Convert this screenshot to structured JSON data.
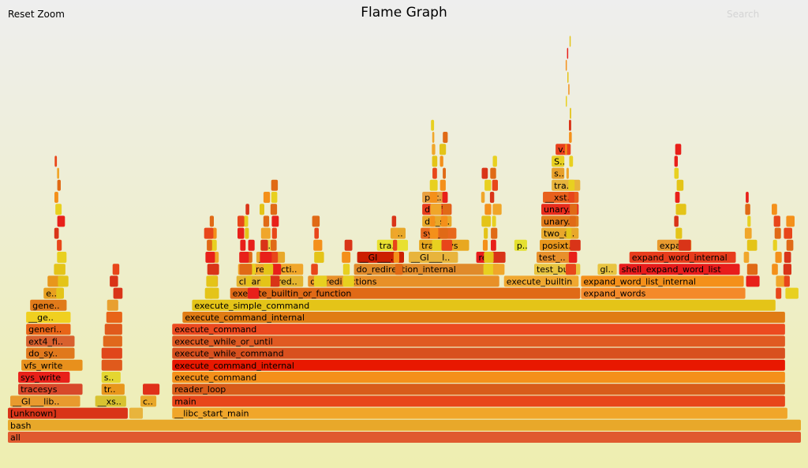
{
  "header": {
    "reset_zoom_label": "Reset Zoom",
    "title": "Flame Graph",
    "search_label": "Search"
  },
  "chart_data": {
    "type": "flame-graph",
    "title": "Flame Graph",
    "frames": [
      {
        "label": "all",
        "start": 0.0,
        "end": 1.0,
        "depth": 0,
        "color": "#e05a2f"
      },
      {
        "label": "bash",
        "start": 0.0,
        "end": 1.0,
        "depth": 1,
        "color": "#e8a82a"
      },
      {
        "label": "[unknown]",
        "start": 0.0,
        "end": 0.152,
        "depth": 2,
        "color": "#d93418"
      },
      {
        "label": "",
        "start": 0.153,
        "end": 0.171,
        "depth": 2,
        "color": "#e8b43c"
      },
      {
        "label": "__libc_start_main",
        "start": 0.207,
        "end": 0.983,
        "depth": 2,
        "color": "#f0a62a"
      },
      {
        "label": "__GI___lib..",
        "start": 0.003,
        "end": 0.092,
        "depth": 3,
        "color": "#e89a2e"
      },
      {
        "label": "__xs..",
        "start": 0.11,
        "end": 0.15,
        "depth": 3,
        "color": "#d8c230"
      },
      {
        "label": "c..",
        "start": 0.167,
        "end": 0.188,
        "depth": 3,
        "color": "#e8a82a"
      },
      {
        "label": "main",
        "start": 0.207,
        "end": 0.98,
        "depth": 3,
        "color": "#e8461a"
      },
      {
        "label": "tracesys",
        "start": 0.013,
        "end": 0.095,
        "depth": 4,
        "color": "#d8482a"
      },
      {
        "label": "tr..",
        "start": 0.118,
        "end": 0.148,
        "depth": 4,
        "color": "#e8961c"
      },
      {
        "label": "",
        "start": 0.17,
        "end": 0.192,
        "depth": 4,
        "color": "#e0301a"
      },
      {
        "label": "reader_loop",
        "start": 0.207,
        "end": 0.98,
        "depth": 4,
        "color": "#d85c1a"
      },
      {
        "label": "sys_write",
        "start": 0.013,
        "end": 0.079,
        "depth": 5,
        "color": "#e8201a"
      },
      {
        "label": "s..",
        "start": 0.118,
        "end": 0.143,
        "depth": 5,
        "color": "#e4d630"
      },
      {
        "label": "execute_command",
        "start": 0.207,
        "end": 0.98,
        "depth": 5,
        "color": "#f4901a"
      },
      {
        "label": "vfs_write",
        "start": 0.017,
        "end": 0.095,
        "depth": 6,
        "color": "#e8901c"
      },
      {
        "label": "",
        "start": 0.118,
        "end": 0.145,
        "depth": 6,
        "color": "#e05a1c"
      },
      {
        "label": "execute_command_internal",
        "start": 0.207,
        "end": 0.98,
        "depth": 6,
        "color": "#e81800"
      },
      {
        "label": "do_sy..",
        "start": 0.023,
        "end": 0.085,
        "depth": 7,
        "color": "#e0781c"
      },
      {
        "label": "",
        "start": 0.118,
        "end": 0.145,
        "depth": 7,
        "color": "#e0461a"
      },
      {
        "label": "execute_while_command",
        "start": 0.207,
        "end": 0.98,
        "depth": 7,
        "color": "#d8501e"
      },
      {
        "label": "ext4_fi..",
        "start": 0.023,
        "end": 0.085,
        "depth": 8,
        "color": "#d8602e"
      },
      {
        "label": "",
        "start": 0.12,
        "end": 0.145,
        "depth": 8,
        "color": "#e0681c"
      },
      {
        "label": "execute_while_or_until",
        "start": 0.207,
        "end": 0.98,
        "depth": 8,
        "color": "#e05a22"
      },
      {
        "label": "generi..",
        "start": 0.023,
        "end": 0.08,
        "depth": 9,
        "color": "#e86418"
      },
      {
        "label": "",
        "start": 0.122,
        "end": 0.145,
        "depth": 9,
        "color": "#e05a1c"
      },
      {
        "label": "execute_command",
        "start": 0.207,
        "end": 0.98,
        "depth": 9,
        "color": "#ec4a20"
      },
      {
        "label": "__ge..",
        "start": 0.023,
        "end": 0.08,
        "depth": 10,
        "color": "#f0d020"
      },
      {
        "label": "",
        "start": 0.124,
        "end": 0.145,
        "depth": 10,
        "color": "#e86418"
      },
      {
        "label": "execute_command_internal",
        "start": 0.22,
        "end": 0.98,
        "depth": 10,
        "color": "#e07c14"
      },
      {
        "label": "gene..",
        "start": 0.028,
        "end": 0.075,
        "depth": 11,
        "color": "#e07a1a"
      },
      {
        "label": "",
        "start": 0.125,
        "end": 0.14,
        "depth": 11,
        "color": "#e8a030"
      },
      {
        "label": "execute_simple_command",
        "start": 0.232,
        "end": 0.968,
        "depth": 11,
        "color": "#e4c418"
      },
      {
        "label": "e..",
        "start": 0.045,
        "end": 0.07,
        "depth": 12,
        "color": "#e8a020"
      },
      {
        "label": "execute_builtin_or_function",
        "start": 0.28,
        "end": 0.722,
        "depth": 12,
        "color": "#e06a16"
      },
      {
        "label": "expand_words",
        "start": 0.722,
        "end": 0.93,
        "depth": 12,
        "color": "#f48a2a"
      },
      {
        "label": "",
        "start": 0.05,
        "end": 0.072,
        "depth": 13,
        "color": "#e8961c"
      },
      {
        "label": "cleanup_red..",
        "start": 0.288,
        "end": 0.373,
        "depth": 13,
        "color": "#e4b42e"
      },
      {
        "label": "do_redirections",
        "start": 0.378,
        "end": 0.62,
        "depth": 13,
        "color": "#e89028"
      },
      {
        "label": "execute_builtin",
        "start": 0.625,
        "end": 0.72,
        "depth": 13,
        "color": "#f0a830"
      },
      {
        "label": "expand_word_list_internal",
        "start": 0.722,
        "end": 0.928,
        "depth": 13,
        "color": "#f4901a"
      },
      {
        "label": "do_redirecti..",
        "start": 0.29,
        "end": 0.373,
        "depth": 14,
        "color": "#f0a62a"
      },
      {
        "label": "do_redirection_internal",
        "start": 0.436,
        "end": 0.62,
        "depth": 14,
        "color": "#e08a2a"
      },
      {
        "label": "test_bui..",
        "start": 0.663,
        "end": 0.722,
        "depth": 14,
        "color": "#e8c440"
      },
      {
        "label": "gl..",
        "start": 0.743,
        "end": 0.768,
        "depth": 14,
        "color": "#e8c440"
      },
      {
        "label": "shell_expand_word_list",
        "start": 0.77,
        "end": 0.923,
        "depth": 14,
        "color": "#e81c1c"
      },
      {
        "label": "__d..",
        "start": 0.313,
        "end": 0.35,
        "depth": 15,
        "color": "#e8a82a"
      },
      {
        "label": "__GI___..",
        "start": 0.44,
        "end": 0.5,
        "depth": 15,
        "color": "#cc2000"
      },
      {
        "label": "__GI___l..",
        "start": 0.505,
        "end": 0.568,
        "depth": 15,
        "color": "#e8b43c"
      },
      {
        "label": "red..",
        "start": 0.59,
        "end": 0.62,
        "depth": 15,
        "color": "#e81c1c"
      },
      {
        "label": "test_..",
        "start": 0.666,
        "end": 0.718,
        "depth": 15,
        "color": "#e8902c"
      },
      {
        "label": "expand_word_internal",
        "start": 0.783,
        "end": 0.918,
        "depth": 15,
        "color": "#e83c1c"
      },
      {
        "label": "i..",
        "start": 0.318,
        "end": 0.338,
        "depth": 16,
        "color": "#e8d448"
      },
      {
        "label": "tra..",
        "start": 0.465,
        "end": 0.505,
        "depth": 16,
        "color": "#e8e030"
      },
      {
        "label": "tracesys",
        "start": 0.518,
        "end": 0.582,
        "depth": 16,
        "color": "#e8a820"
      },
      {
        "label": "p..",
        "start": 0.638,
        "end": 0.655,
        "depth": 16,
        "color": "#e4e030"
      },
      {
        "label": "posixt..",
        "start": 0.67,
        "end": 0.718,
        "depth": 16,
        "color": "#e8961c"
      },
      {
        "label": "expa..",
        "start": 0.818,
        "end": 0.862,
        "depth": 16,
        "color": "#e89a2e"
      },
      {
        "label": "s..",
        "start": 0.482,
        "end": 0.502,
        "depth": 17,
        "color": "#e8a82a"
      },
      {
        "label": "sys_..",
        "start": 0.52,
        "end": 0.566,
        "depth": 17,
        "color": "#e8681c"
      },
      {
        "label": "two_a..",
        "start": 0.672,
        "end": 0.72,
        "depth": 17,
        "color": "#e8a82a"
      },
      {
        "label": "do_s..",
        "start": 0.522,
        "end": 0.56,
        "depth": 18,
        "color": "#e8a82a"
      },
      {
        "label": "unary..",
        "start": 0.672,
        "end": 0.72,
        "depth": 18,
        "color": "#e07a1a"
      },
      {
        "label": "do_f..",
        "start": 0.522,
        "end": 0.56,
        "depth": 19,
        "color": "#e83c1c"
      },
      {
        "label": "unary..",
        "start": 0.672,
        "end": 0.72,
        "depth": 19,
        "color": "#e82c1c"
      },
      {
        "label": "pat..",
        "start": 0.522,
        "end": 0.555,
        "depth": 20,
        "color": "#e8a040"
      },
      {
        "label": "__xst..",
        "start": 0.674,
        "end": 0.72,
        "depth": 20,
        "color": "#e8601c"
      },
      {
        "label": "tra..",
        "start": 0.685,
        "end": 0.722,
        "depth": 21,
        "color": "#e8b43c"
      },
      {
        "label": "s..",
        "start": 0.685,
        "end": 0.702,
        "depth": 22,
        "color": "#e8a02a"
      },
      {
        "label": "S..",
        "start": 0.685,
        "end": 0.702,
        "depth": 23,
        "color": "#e8d020"
      },
      {
        "label": "v..",
        "start": 0.69,
        "end": 0.71,
        "depth": 24,
        "color": "#e8401c"
      }
    ]
  }
}
